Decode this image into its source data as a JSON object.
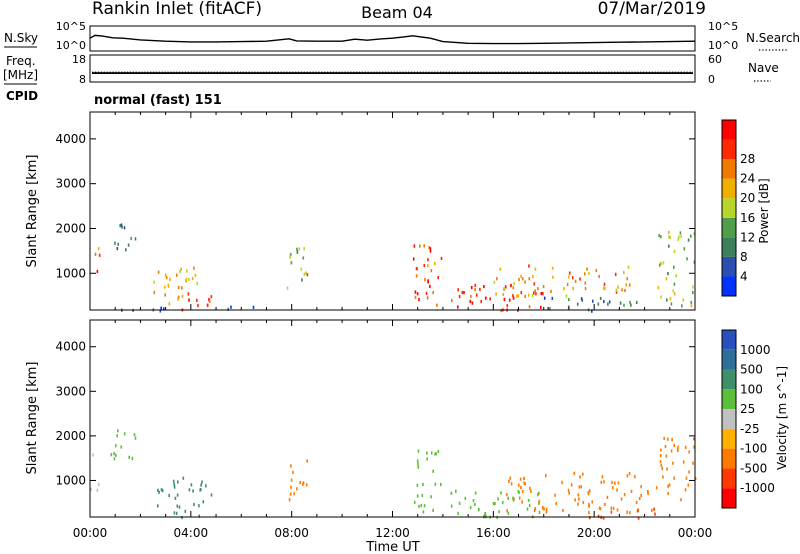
{
  "header": {
    "station": "Rankin Inlet (fitACF)",
    "beam": "Beam 04",
    "date": "07/Mar/2019"
  },
  "noise_panel": {
    "left_label": "N.Sky",
    "right_label": "N.Search",
    "left_ticks": [
      "10^5",
      "10^0"
    ],
    "right_ticks": [
      "10^5",
      "10^0"
    ],
    "sky_series": [
      [
        0.0,
        2.6
      ],
      [
        0.2,
        3.4
      ],
      [
        0.5,
        3.2
      ],
      [
        0.9,
        2.7
      ],
      [
        1.3,
        2.6
      ],
      [
        2.0,
        2.1
      ],
      [
        3.0,
        1.7
      ],
      [
        4.0,
        1.5
      ],
      [
        5.0,
        1.5
      ],
      [
        6.0,
        1.6
      ],
      [
        7.0,
        1.7
      ],
      [
        7.9,
        2.4
      ],
      [
        8.2,
        1.8
      ],
      [
        9.0,
        1.7
      ],
      [
        10.0,
        1.7
      ],
      [
        10.5,
        2.3
      ],
      [
        11.0,
        2.0
      ],
      [
        11.6,
        2.4
      ],
      [
        12.0,
        2.6
      ],
      [
        12.4,
        2.9
      ],
      [
        12.8,
        3.3
      ],
      [
        13.5,
        2.6
      ],
      [
        14.0,
        1.6
      ],
      [
        15.0,
        1.1
      ],
      [
        16.0,
        1.0
      ],
      [
        17.0,
        1.0
      ],
      [
        18.0,
        1.1
      ],
      [
        19.0,
        1.2
      ],
      [
        20.0,
        1.3
      ],
      [
        21.0,
        1.4
      ],
      [
        22.0,
        1.5
      ],
      [
        23.0,
        1.6
      ],
      [
        24.0,
        1.7
      ]
    ]
  },
  "freq_panel": {
    "left_label": "Freq.",
    "left_unit": "[MHz]",
    "cpid_label": "CPID",
    "right_label": "Nave",
    "left_ticks": [
      "18",
      "8"
    ],
    "right_ticks": [
      "60",
      "0"
    ],
    "cpid_text": "normal (fast) 151",
    "freq_level": 11.0,
    "nave_level": 20
  },
  "colors": {
    "power_scale": [
      "#0033ff",
      "#2b4fb0",
      "#3d7f5a",
      "#4f9e4a",
      "#b8d62a",
      "#f0b000",
      "#f07a00",
      "#ff2a00",
      "#ff0000"
    ],
    "velocity_scale": [
      "#2a4fbf",
      "#2f6e9a",
      "#3f8f6a",
      "#5cbf3a",
      "#c0c0c0",
      "#ffb000",
      "#ff7a00",
      "#ff3a00",
      "#ff0000"
    ]
  },
  "chart_data": [
    {
      "type": "heatmap",
      "title": "Power",
      "xlabel": "Time UT",
      "ylabel": "Slant Range [km]",
      "x_ticks": [
        "00:00",
        "04:00",
        "08:00",
        "12:00",
        "16:00",
        "20:00",
        "00:00"
      ],
      "y_ticks": [
        "1000",
        "2000",
        "3000",
        "4000"
      ],
      "ylim": [
        180,
        4600
      ],
      "xlim": [
        0,
        24
      ],
      "colorbar": {
        "label": "Power [dB]",
        "ticks": [
          "4",
          "8",
          "12",
          "16",
          "20",
          "24",
          "28"
        ],
        "range": [
          0,
          32
        ]
      },
      "scatter_regions": [
        {
          "t0": 0.0,
          "t1": 0.4,
          "r0": 800,
          "r1": 1700,
          "level": 24
        },
        {
          "t0": 0.8,
          "t1": 1.8,
          "r0": 1500,
          "r1": 2150,
          "level": 10
        },
        {
          "t0": 2.5,
          "t1": 4.5,
          "r0": 350,
          "r1": 1150,
          "level": 20
        },
        {
          "t0": 3.2,
          "t1": 4.8,
          "r0": 200,
          "r1": 600,
          "level": 26
        },
        {
          "t0": 1.0,
          "t1": 6.5,
          "r0": 180,
          "r1": 300,
          "level": 6
        },
        {
          "t0": 7.8,
          "t1": 8.6,
          "r0": 600,
          "r1": 1600,
          "level": 14
        },
        {
          "t0": 12.8,
          "t1": 14.0,
          "r0": 300,
          "r1": 1700,
          "level": 26
        },
        {
          "t0": 14.3,
          "t1": 18.0,
          "r0": 200,
          "r1": 800,
          "level": 28
        },
        {
          "t0": 16.0,
          "t1": 21.5,
          "r0": 500,
          "r1": 1200,
          "level": 22
        },
        {
          "t0": 18.0,
          "t1": 22.0,
          "r0": 180,
          "r1": 500,
          "level": 8
        },
        {
          "t0": 22.5,
          "t1": 24.0,
          "r0": 300,
          "r1": 2000,
          "level": 14
        }
      ]
    },
    {
      "type": "heatmap",
      "title": "Velocity",
      "xlabel": "Time UT",
      "ylabel": "Slant Range [km]",
      "x_ticks": [
        "00:00",
        "04:00",
        "08:00",
        "12:00",
        "16:00",
        "20:00",
        "00:00"
      ],
      "y_ticks": [
        "1000",
        "2000",
        "3000",
        "4000"
      ],
      "ylim": [
        180,
        4600
      ],
      "xlim": [
        0,
        24
      ],
      "colorbar": {
        "label": "Velocity [m s^-1]",
        "ticks": [
          "1000",
          "500",
          "100",
          "25",
          "-25",
          "-100",
          "-500",
          "-1000"
        ]
      },
      "scatter_regions": [
        {
          "t0": 0.0,
          "t1": 0.4,
          "r0": 800,
          "r1": 1700,
          "level": 0
        },
        {
          "t0": 0.8,
          "t1": 1.8,
          "r0": 1500,
          "r1": 2150,
          "level": 60
        },
        {
          "t0": 2.5,
          "t1": 4.8,
          "r0": 200,
          "r1": 1100,
          "level": 150
        },
        {
          "t0": 7.8,
          "t1": 8.6,
          "r0": 600,
          "r1": 1600,
          "level": -200
        },
        {
          "t0": 12.8,
          "t1": 14.0,
          "r0": 300,
          "r1": 1700,
          "level": 40
        },
        {
          "t0": 14.3,
          "t1": 18.0,
          "r0": 200,
          "r1": 800,
          "level": 60
        },
        {
          "t0": 16.5,
          "t1": 22.5,
          "r0": 300,
          "r1": 1200,
          "level": -300
        },
        {
          "t0": 19.0,
          "t1": 22.5,
          "r0": 180,
          "r1": 400,
          "level": -800
        },
        {
          "t0": 22.5,
          "t1": 24.0,
          "r0": 600,
          "r1": 2000,
          "level": -200
        }
      ]
    }
  ]
}
